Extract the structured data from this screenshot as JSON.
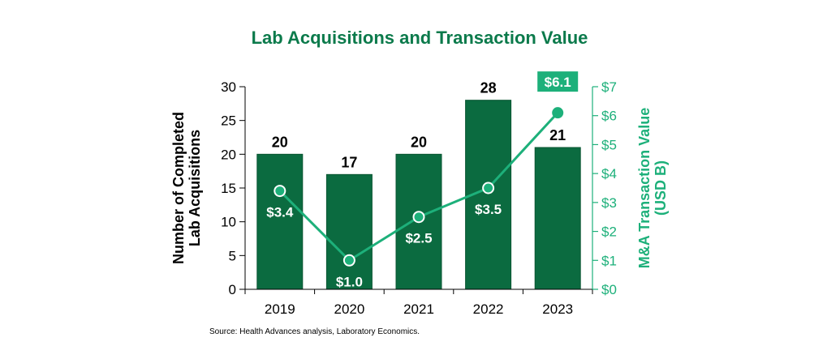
{
  "chart_data": {
    "type": "bar",
    "title": "Lab Acquisitions and Transaction Value",
    "categories": [
      "2019",
      "2020",
      "2021",
      "2022",
      "2023"
    ],
    "series": [
      {
        "name": "Number of Completed Lab Acquisitions",
        "type": "bar",
        "axis": "left",
        "values": [
          20,
          17,
          20,
          28,
          21
        ],
        "labels": [
          "20",
          "17",
          "20",
          "28",
          "21"
        ]
      },
      {
        "name": "M&A Transaction Value (USD B)",
        "type": "line",
        "axis": "right",
        "values": [
          3.4,
          1.0,
          2.5,
          3.5,
          6.1
        ],
        "labels": [
          "$3.4",
          "$1.0",
          "$2.5",
          "$3.5",
          "$6.1"
        ],
        "highlight_index": 4
      }
    ],
    "ylabel_left": [
      "Number of Completed",
      "Lab Acquisitions"
    ],
    "ylabel_right": [
      "M&A Transaction Value",
      "(USD B)"
    ],
    "ylim_left": [
      0,
      30
    ],
    "yticks_left": [
      "0",
      "5",
      "10",
      "15",
      "20",
      "25",
      "30"
    ],
    "ylim_right": [
      0,
      7
    ],
    "yticks_right": [
      "$0",
      "$1",
      "$2",
      "$3",
      "$4",
      "$5",
      "$6",
      "$7"
    ],
    "source": "Source:  Health Advances analysis, Laboratory Economics.",
    "colors": {
      "title": "#0b7a4b",
      "bar": "#0b6b40",
      "bar_stroke": "#0a5632",
      "line": "#1db07a",
      "marker_fill": "#1db07a",
      "marker_stroke": "#ffffff",
      "highlight_box": "#1db07a",
      "axis_left": "#000000",
      "axis_right": "#1db07a"
    }
  }
}
